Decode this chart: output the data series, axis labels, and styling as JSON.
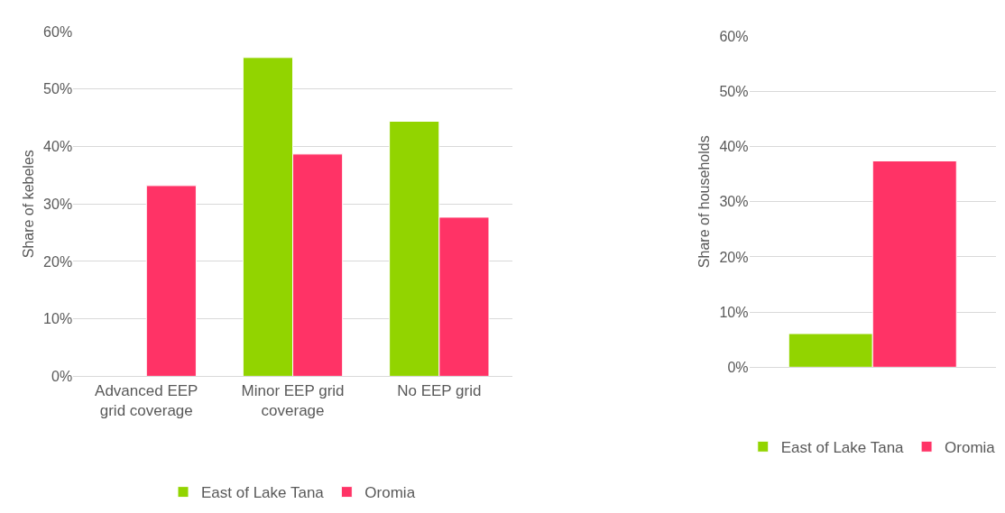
{
  "chart_data": [
    {
      "type": "bar",
      "ylabel": "Share of kebeles",
      "categories": [
        "Advanced EEP grid coverage",
        "Minor EEP grid coverage",
        "No EEP grid"
      ],
      "series": [
        {
          "name": "East of Lake Tana",
          "color": "#92d400",
          "values": [
            null,
            55.5,
            44.4
          ]
        },
        {
          "name": "Oromia",
          "color": "#ff3366",
          "values": [
            33.2,
            38.7,
            27.7
          ]
        }
      ],
      "ylim": [
        0,
        60
      ],
      "yticks": [
        {
          "value": 0,
          "label": "0%"
        },
        {
          "value": 10,
          "label": "10%"
        },
        {
          "value": 20,
          "label": "20%"
        },
        {
          "value": 30,
          "label": "30%"
        },
        {
          "value": 40,
          "label": "40%"
        },
        {
          "value": 50,
          "label": "50%"
        },
        {
          "value": 60,
          "label": "60%"
        }
      ],
      "grid": "y",
      "legend": "bottom"
    },
    {
      "type": "bar",
      "ylabel": "Share of households",
      "categories": [
        null
      ],
      "series": [
        {
          "name": "East of Lake Tana",
          "color": "#92d400",
          "values": [
            6.1
          ]
        },
        {
          "name": "Oromia",
          "color": "#ff3366",
          "values": [
            37.4
          ]
        }
      ],
      "ylim": [
        0,
        60
      ],
      "yticks": [
        {
          "value": 0,
          "label": "0%"
        },
        {
          "value": 10,
          "label": "10%"
        },
        {
          "value": 20,
          "label": "20%"
        },
        {
          "value": 30,
          "label": "30%"
        },
        {
          "value": 40,
          "label": "40%"
        },
        {
          "value": 50,
          "label": "50%"
        },
        {
          "value": 60,
          "label": "60%"
        }
      ],
      "grid": "y",
      "legend": "bottom"
    }
  ]
}
